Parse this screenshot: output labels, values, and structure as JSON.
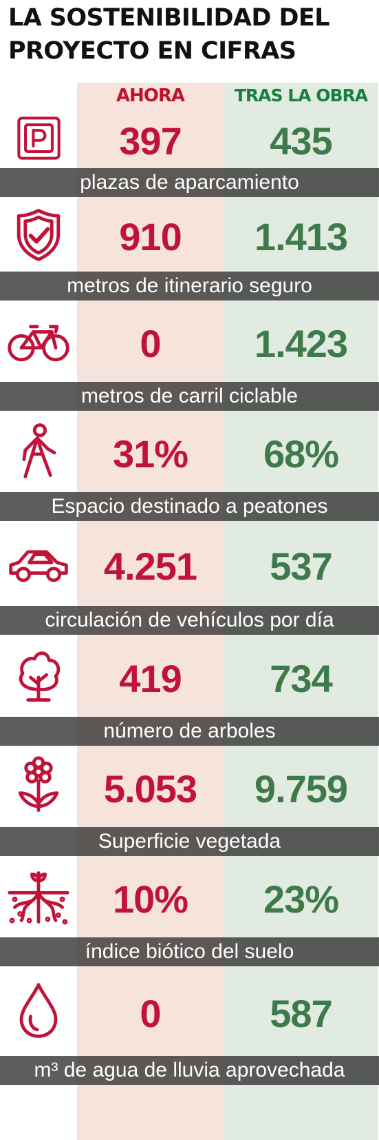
{
  "title": "LA SOSTENIBILIDAD DEL PROYECTO EN CIFRAS",
  "colors": {
    "now": "#c0133a",
    "after": "#3f7a4a",
    "now_bg": "#f6e3dc",
    "after_bg": "#e2ebe1",
    "band": "#3a3a3a"
  },
  "chart_data": {
    "type": "table",
    "title": "LA SOSTENIBILIDAD DEL PROYECTO EN CIFRAS",
    "columns": [
      "AHORA",
      "TRAS LA OBRA"
    ],
    "rows": [
      {
        "icon": "parking-icon",
        "label": "plazas de aparcamiento",
        "now": "397",
        "after": "435"
      },
      {
        "icon": "shield-check-icon",
        "label": "metros de itinerario seguro",
        "now": "910",
        "after": "1.413"
      },
      {
        "icon": "bicycle-icon",
        "label": "metros de carril ciclable",
        "now": "0",
        "after": "1.423"
      },
      {
        "icon": "pedestrian-icon",
        "label": "Espacio destinado a peatones",
        "now": "31%",
        "after": "68%"
      },
      {
        "icon": "car-icon",
        "label": "circulación de vehículos por día",
        "now": "4.251",
        "after": "537"
      },
      {
        "icon": "tree-icon",
        "label": "número de arboles",
        "now": "419",
        "after": "734"
      },
      {
        "icon": "flower-icon",
        "label": "Superficie vegetada",
        "now": "5.053",
        "after": "9.759"
      },
      {
        "icon": "soil-sprout-icon",
        "label": "índice biótico del suelo",
        "now": "10%",
        "after": "23%"
      },
      {
        "icon": "water-drop-icon",
        "label": "m³ de agua de lluvia aprovechada",
        "now": "0",
        "after": "587"
      }
    ]
  }
}
